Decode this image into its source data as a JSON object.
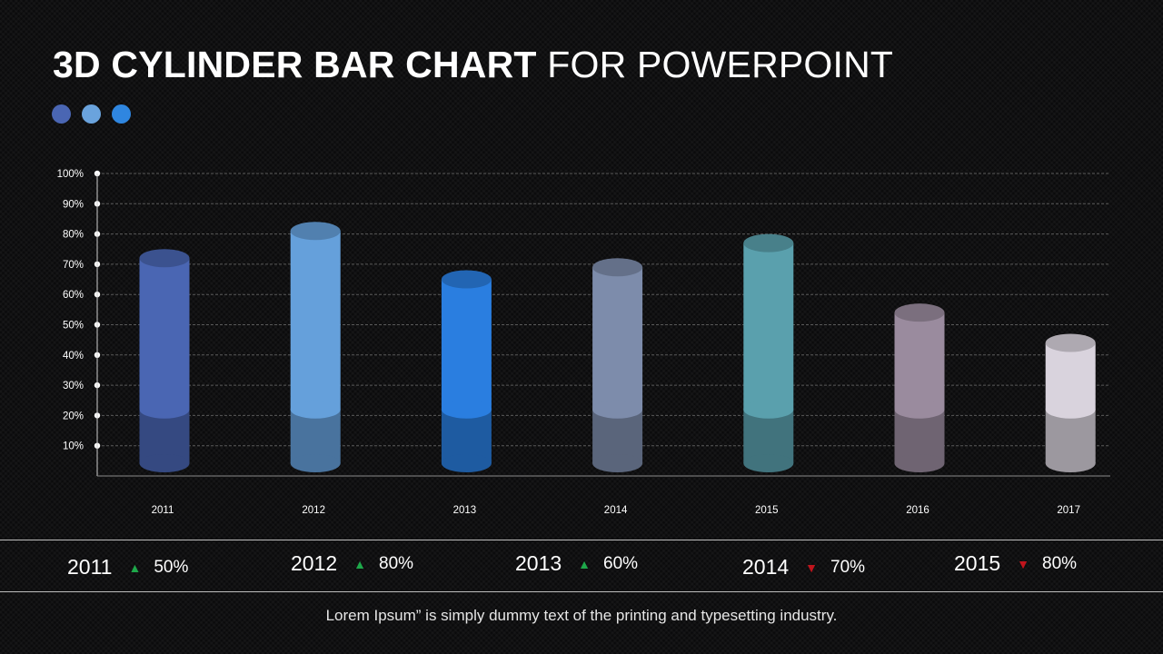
{
  "title": {
    "bold": "3D CYLINDER BAR CHART",
    "light": "FOR POWERPOINT"
  },
  "decor_dots": [
    "#4a66b3",
    "#6aa3dd",
    "#2f86e0"
  ],
  "chart_data": {
    "type": "bar",
    "categories": [
      "2011",
      "2012",
      "2013",
      "2014",
      "2015",
      "2016",
      "2017"
    ],
    "values": [
      72,
      81,
      65,
      69,
      77,
      54,
      44
    ],
    "lower_segment": 22,
    "colors": [
      "#4a66b3",
      "#65a0db",
      "#2a7ee0",
      "#7d8cab",
      "#5aa0ad",
      "#9a8b9e",
      "#d9d3dd"
    ],
    "yticks": [
      "10%",
      "20%",
      "30%",
      "40%",
      "50%",
      "60%",
      "70%",
      "80%",
      "90%",
      "100%"
    ],
    "ylim": [
      0,
      100
    ],
    "grid": true
  },
  "stats": [
    {
      "year": "2011",
      "trend": "up",
      "value": "50%"
    },
    {
      "year": "2012",
      "trend": "up",
      "value": "80%"
    },
    {
      "year": "2013",
      "trend": "up",
      "value": "60%"
    },
    {
      "year": "2014",
      "trend": "down",
      "value": "70%"
    },
    {
      "year": "2015",
      "trend": "down",
      "value": "80%"
    }
  ],
  "trend_colors": {
    "up": "#1ea84a",
    "down": "#c0141c"
  },
  "footer_text": "Lorem Ipsum” is simply dummy text of the printing and typesetting industry."
}
